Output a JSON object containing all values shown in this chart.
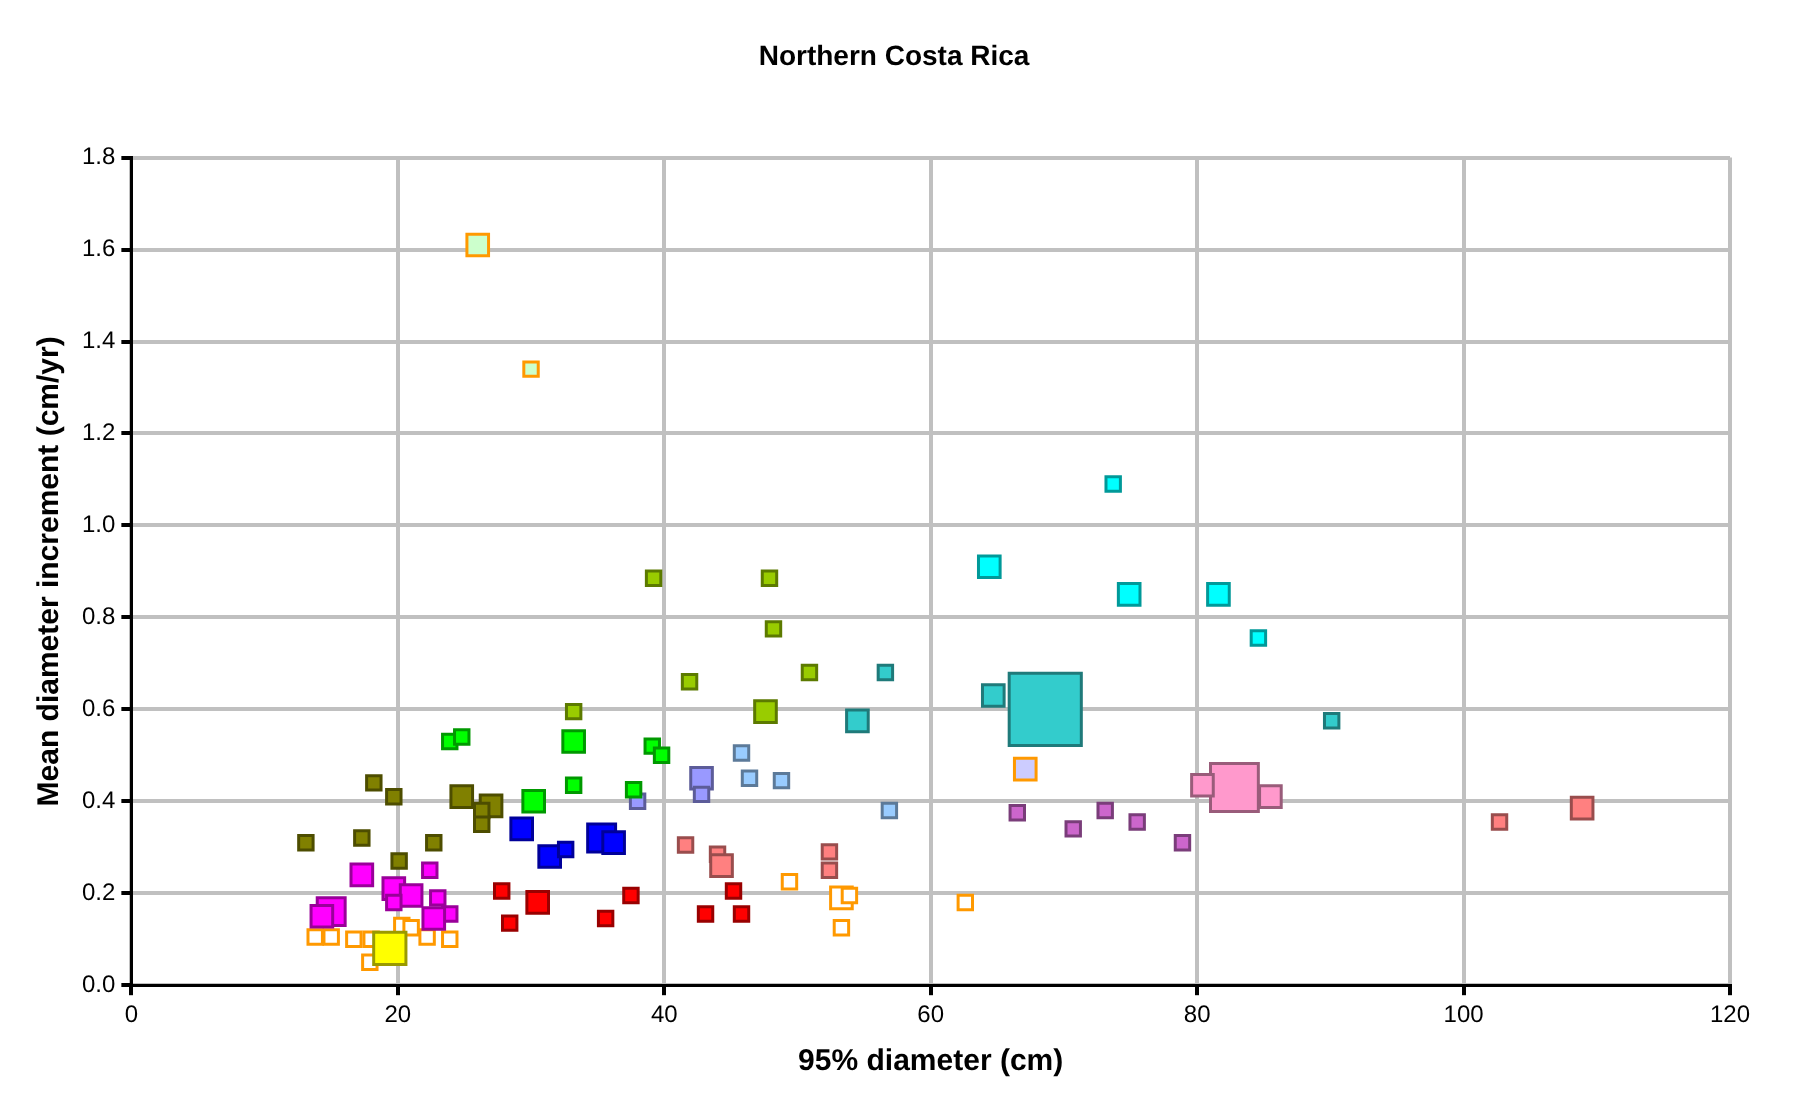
{
  "chart_data": {
    "type": "bubble",
    "title": "Northern Costa Rica",
    "xlabel": "95% diameter (cm)",
    "ylabel": "Mean diameter increment (cm/yr)",
    "xlim": [
      0,
      120
    ],
    "xticks": [
      0,
      20,
      40,
      60,
      80,
      100,
      120
    ],
    "ylim": [
      0,
      1.8
    ],
    "yticks": [
      {
        "value": 0,
        "label": "0.0"
      },
      {
        "value": 0.2,
        "label": "0.2"
      },
      {
        "value": 0.4,
        "label": "0.4"
      },
      {
        "value": 0.6,
        "label": "0.6"
      },
      {
        "value": 0.8,
        "label": "0.8"
      },
      {
        "value": 1,
        "label": "1.0"
      },
      {
        "value": 1.2,
        "label": "1.2"
      },
      {
        "value": 1.4,
        "label": "1.4"
      },
      {
        "value": 1.6,
        "label": "1.6"
      },
      {
        "value": 1.8,
        "label": "1.8"
      }
    ],
    "grid": true,
    "legend": false,
    "marker": "square",
    "series": [
      {
        "color": "#ccffcc",
        "x": [
          26,
          30
        ],
        "values": [
          1.61,
          1.34
        ],
        "sizes": [
          0.09,
          0.04
        ]
      },
      {
        "color": "#99cc00",
        "x": [
          39.2,
          47.9,
          48.2,
          50.9,
          41.9,
          33.2,
          47.6
        ],
        "values": [
          0.885,
          0.885,
          0.775,
          0.68,
          0.66,
          0.595,
          0.595
        ],
        "sizes": [
          0.04,
          0.04,
          0.04,
          0.04,
          0.04,
          0.04,
          0.09
        ]
      },
      {
        "color": "#00ff00",
        "x": [
          23.9,
          24.8,
          33.2,
          39.1,
          39.8,
          33.2,
          37.7,
          30.2
        ],
        "values": [
          0.53,
          0.54,
          0.53,
          0.52,
          0.5,
          0.435,
          0.425,
          0.4
        ],
        "sizes": [
          0.04,
          0.04,
          0.09,
          0.04,
          0.04,
          0.04,
          0.04,
          0.09
        ]
      },
      {
        "color": "#808000",
        "x": [
          18.2,
          19.7,
          24.8,
          27,
          26.3,
          26.3,
          13.1,
          17.3,
          22.7,
          20.1
        ],
        "values": [
          0.44,
          0.41,
          0.41,
          0.39,
          0.38,
          0.35,
          0.31,
          0.32,
          0.31,
          0.27
        ],
        "sizes": [
          0.04,
          0.04,
          0.09,
          0.09,
          0.04,
          0.04,
          0.04,
          0.04,
          0.04,
          0.04
        ]
      },
      {
        "color": "#0000ff",
        "x": [
          29.3,
          31.4,
          32.6,
          35.3,
          36.2
        ],
        "values": [
          0.34,
          0.28,
          0.295,
          0.32,
          0.31
        ],
        "sizes": [
          0.09,
          0.09,
          0.04,
          0.15,
          0.09
        ]
      },
      {
        "color": "#9999ff",
        "x": [
          38,
          42.8,
          42.8
        ],
        "values": [
          0.4,
          0.45,
          0.415
        ],
        "sizes": [
          0.04,
          0.09,
          0.04
        ]
      },
      {
        "color": "#99ccff",
        "x": [
          45.8,
          46.4,
          48.8,
          56.9
        ],
        "values": [
          0.505,
          0.45,
          0.445,
          0.38
        ],
        "sizes": [
          0.04,
          0.04,
          0.04,
          0.04
        ]
      },
      {
        "color": "#ccccff",
        "x": [
          67.1
        ],
        "values": [
          0.47
        ],
        "sizes": [
          0.09
        ]
      },
      {
        "color": "#33cccc",
        "x": [
          54.5,
          64.7,
          68.6,
          56.6,
          90.1
        ],
        "values": [
          0.575,
          0.63,
          0.6,
          0.68,
          0.575
        ],
        "sizes": [
          0.09,
          0.09,
          1,
          0.04,
          0.04
        ]
      },
      {
        "color": "#00ffff",
        "x": [
          64.4,
          74.9,
          81.6,
          73.7,
          84.6
        ],
        "values": [
          0.91,
          0.85,
          0.85,
          1.09,
          0.755
        ],
        "sizes": [
          0.09,
          0.09,
          0.09,
          0.04,
          0.04
        ]
      },
      {
        "color": "#ff99cc",
        "x": [
          82.8,
          80.4,
          85.5
        ],
        "values": [
          0.43,
          0.435,
          0.41
        ],
        "sizes": [
          0.44,
          0.09,
          0.09
        ]
      },
      {
        "color": "#cc66cc",
        "x": [
          66.5,
          70.7,
          73.1,
          75.5,
          78.9
        ],
        "values": [
          0.375,
          0.34,
          0.38,
          0.355,
          0.31
        ],
        "sizes": [
          0.04,
          0.04,
          0.04,
          0.04,
          0.04
        ]
      },
      {
        "color": "#ff8080",
        "x": [
          41.6,
          52.4,
          52.4,
          44,
          44.3,
          102.7,
          108.9
        ],
        "values": [
          0.305,
          0.29,
          0.25,
          0.285,
          0.26,
          0.355,
          0.385
        ],
        "sizes": [
          0.04,
          0.04,
          0.04,
          0.04,
          0.09,
          0.04,
          0.09
        ]
      },
      {
        "color": "#ff0000",
        "x": [
          45.2,
          43.1,
          45.8,
          37.5,
          27.8,
          30.5,
          28.4,
          35.6
        ],
        "values": [
          0.205,
          0.155,
          0.155,
          0.195,
          0.205,
          0.18,
          0.135,
          0.145
        ],
        "sizes": [
          0.04,
          0.04,
          0.04,
          0.04,
          0.04,
          0.09,
          0.04,
          0.04
        ]
      },
      {
        "color": "#ff00ff",
        "x": [
          17.3,
          15,
          14.3,
          19.7,
          21,
          22.4,
          23,
          23.9,
          22.7,
          19.7
        ],
        "values": [
          0.24,
          0.16,
          0.15,
          0.21,
          0.195,
          0.25,
          0.19,
          0.155,
          0.145,
          0.18
        ],
        "sizes": [
          0.09,
          0.15,
          0.09,
          0.09,
          0.09,
          0.04,
          0.04,
          0.04,
          0.09,
          0.04
        ]
      },
      {
        "color": "#ffff00",
        "x": [
          19.4
        ],
        "values": [
          0.08
        ],
        "sizes": [
          0.2
        ]
      },
      {
        "color": "#ffffff",
        "x": [
          13.8,
          15,
          16.7,
          18,
          17.9,
          20.3,
          21,
          22.2,
          23.9,
          49.4,
          53.3,
          53.9,
          53.3,
          62.6
        ],
        "values": [
          0.105,
          0.105,
          0.1,
          0.1,
          0.05,
          0.13,
          0.125,
          0.105,
          0.1,
          0.225,
          0.19,
          0.195,
          0.125,
          0.18
        ],
        "sizes": [
          0.04,
          0.04,
          0.04,
          0.04,
          0.04,
          0.04,
          0.04,
          0.04,
          0.04,
          0.04,
          0.09,
          0.04,
          0.04,
          0.04
        ]
      }
    ]
  }
}
